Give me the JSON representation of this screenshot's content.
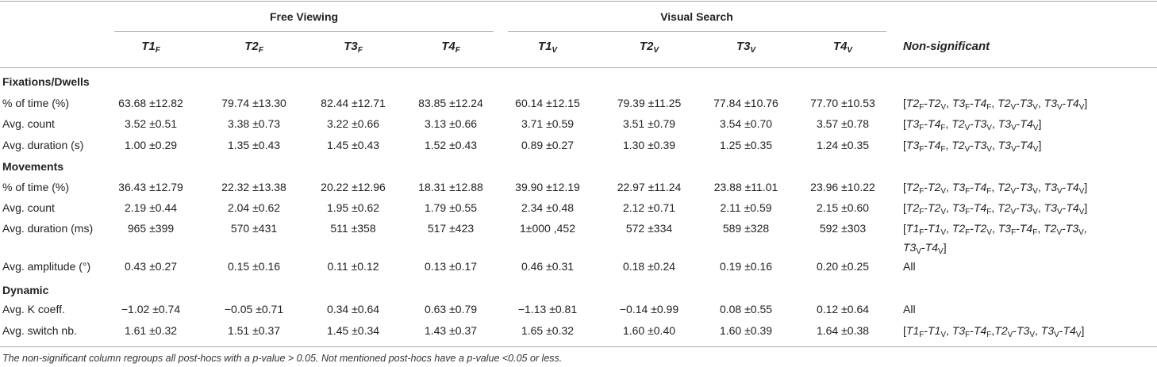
{
  "header": {
    "group_free": "Free Viewing",
    "group_visual": "Visual Search",
    "columns": [
      {
        "base": "T1",
        "sub": "F"
      },
      {
        "base": "T2",
        "sub": "F"
      },
      {
        "base": "T3",
        "sub": "F"
      },
      {
        "base": "T4",
        "sub": "F"
      },
      {
        "base": "T1",
        "sub": "V"
      },
      {
        "base": "T2",
        "sub": "V"
      },
      {
        "base": "T3",
        "sub": "V"
      },
      {
        "base": "T4",
        "sub": "V"
      }
    ],
    "nonsig_label": "Non-significant"
  },
  "sections": [
    {
      "title": "Fixations/Dwells"
    },
    {
      "title": "Movements"
    },
    {
      "title": "Dynamic"
    }
  ],
  "rows": [
    {
      "label": "% of time (%)",
      "values": [
        "63.68 ±12.82",
        "79.74 ±13.30",
        "82.44 ±12.71",
        "83.85 ±12.24",
        "60.14 ±12.15",
        "79.39 ±11.25",
        "77.84 ±10.76",
        "77.70 ±10.53"
      ],
      "ns": [
        [
          "T2",
          "F",
          "T2",
          "V"
        ],
        [
          "T3",
          "F",
          "T4",
          "F"
        ],
        [
          "T2",
          "V",
          "T3",
          "V"
        ],
        [
          "T3",
          "V",
          "T4",
          "V"
        ]
      ]
    },
    {
      "label": "Avg. count",
      "values": [
        "3.52 ±0.51",
        "3.38 ±0.73",
        "3.22 ±0.66",
        "3.13 ±0.66",
        "3.71 ±0.59",
        "3.51 ±0.79",
        "3.54 ±0.70",
        "3.57 ±0.78"
      ],
      "ns": [
        [
          "T3",
          "F",
          "T4",
          "F"
        ],
        [
          "T2",
          "V",
          "T3",
          "V"
        ],
        [
          "T3",
          "V",
          "T4",
          "V"
        ]
      ]
    },
    {
      "label": "Avg. duration (s)",
      "values": [
        "1.00 ±0.29",
        "1.35 ±0.43",
        "1.45 ±0.43",
        "1.52 ±0.43",
        "0.89 ±0.27",
        "1.30 ±0.39",
        "1.25 ±0.35",
        "1.24 ±0.35"
      ],
      "ns": [
        [
          "T3",
          "F",
          "T4",
          "F"
        ],
        [
          "T2",
          "V",
          "T3",
          "V"
        ],
        [
          "T3",
          "V",
          "T4",
          "V"
        ]
      ]
    },
    {
      "label": "% of time (%)",
      "values": [
        "36.43 ±12.79",
        "22.32 ±13.38",
        "20.22 ±12.96",
        "18.31 ±12.88",
        "39.90 ±12.19",
        "22.97 ±11.24",
        "23.88 ±11.01",
        "23.96 ±10.22"
      ],
      "ns": [
        [
          "T2",
          "F",
          "T2",
          "V"
        ],
        [
          "T3",
          "F",
          "T4",
          "F"
        ],
        [
          "T2",
          "V",
          "T3",
          "V"
        ],
        [
          "T3",
          "V",
          "T4",
          "V"
        ]
      ]
    },
    {
      "label": "Avg. count",
      "values": [
        "2.19 ±0.44",
        "2.04 ±0.62",
        "1.95 ±0.62",
        "1.79 ±0.55",
        "2.34 ±0.48",
        "2.12 ±0.71",
        "2.11 ±0.59",
        "2.15 ±0.60"
      ],
      "ns": [
        [
          "T2",
          "F",
          "T2",
          "V"
        ],
        [
          "T3",
          "F",
          "T4",
          "F"
        ],
        [
          "T2",
          "V",
          "T3",
          "V"
        ],
        [
          "T3",
          "V",
          "T4",
          "V"
        ]
      ]
    },
    {
      "label": "Avg. duration (ms)",
      "values": [
        "965 ±399",
        "570 ±431",
        "511 ±358",
        "517 ±423",
        "1±000 ,452",
        "572 ±334",
        "589 ±328",
        "592 ±303"
      ],
      "ns": [
        [
          "T1",
          "F",
          "T1",
          "V"
        ],
        [
          "T2",
          "F",
          "T2",
          "V"
        ],
        [
          "T3",
          "F",
          "T4",
          "F"
        ],
        [
          "T2",
          "V",
          "T3",
          "V"
        ],
        [
          "T3",
          "V",
          "T4",
          "V"
        ]
      ]
    },
    {
      "label": "Avg. amplitude (°)",
      "values": [
        "0.43 ±0.27",
        "0.15 ±0.16",
        "0.11 ±0.12",
        "0.13 ±0.17",
        "0.46 ±0.31",
        "0.18 ±0.24",
        "0.19 ±0.16",
        "0.20 ±0.25"
      ],
      "ns_text": "All"
    },
    {
      "label": "Avg. K coeff.",
      "values": [
        "−1.02 ±0.74",
        "−0.05 ±0.71",
        "0.34 ±0.64",
        "0.63 ±0.79",
        "−1.13 ±0.81",
        "−0.14 ±0.99",
        "0.08 ±0.55",
        "0.12 ±0.64"
      ],
      "ns_text": "All"
    },
    {
      "label": "Avg. switch nb.",
      "values": [
        "1.61 ±0.32",
        "1.51 ±0.37",
        "1.45 ±0.34",
        "1.43 ±0.37",
        "1.65 ±0.32",
        "1.60 ±0.40",
        "1.60 ±0.39",
        "1.64 ±0.38"
      ],
      "ns": [
        [
          "T1",
          "F",
          "T1",
          "V"
        ],
        [
          "T3",
          "F",
          "T4",
          "F"
        ],
        [
          "T2",
          "V",
          "T3",
          "V"
        ],
        [
          "T3",
          "V",
          "T4",
          "V"
        ]
      ]
    }
  ],
  "footnote": "The non-significant column regroups all post-hocs with a p-value > 0.05. Not mentioned post-hocs have a p-value <0.05 or less."
}
